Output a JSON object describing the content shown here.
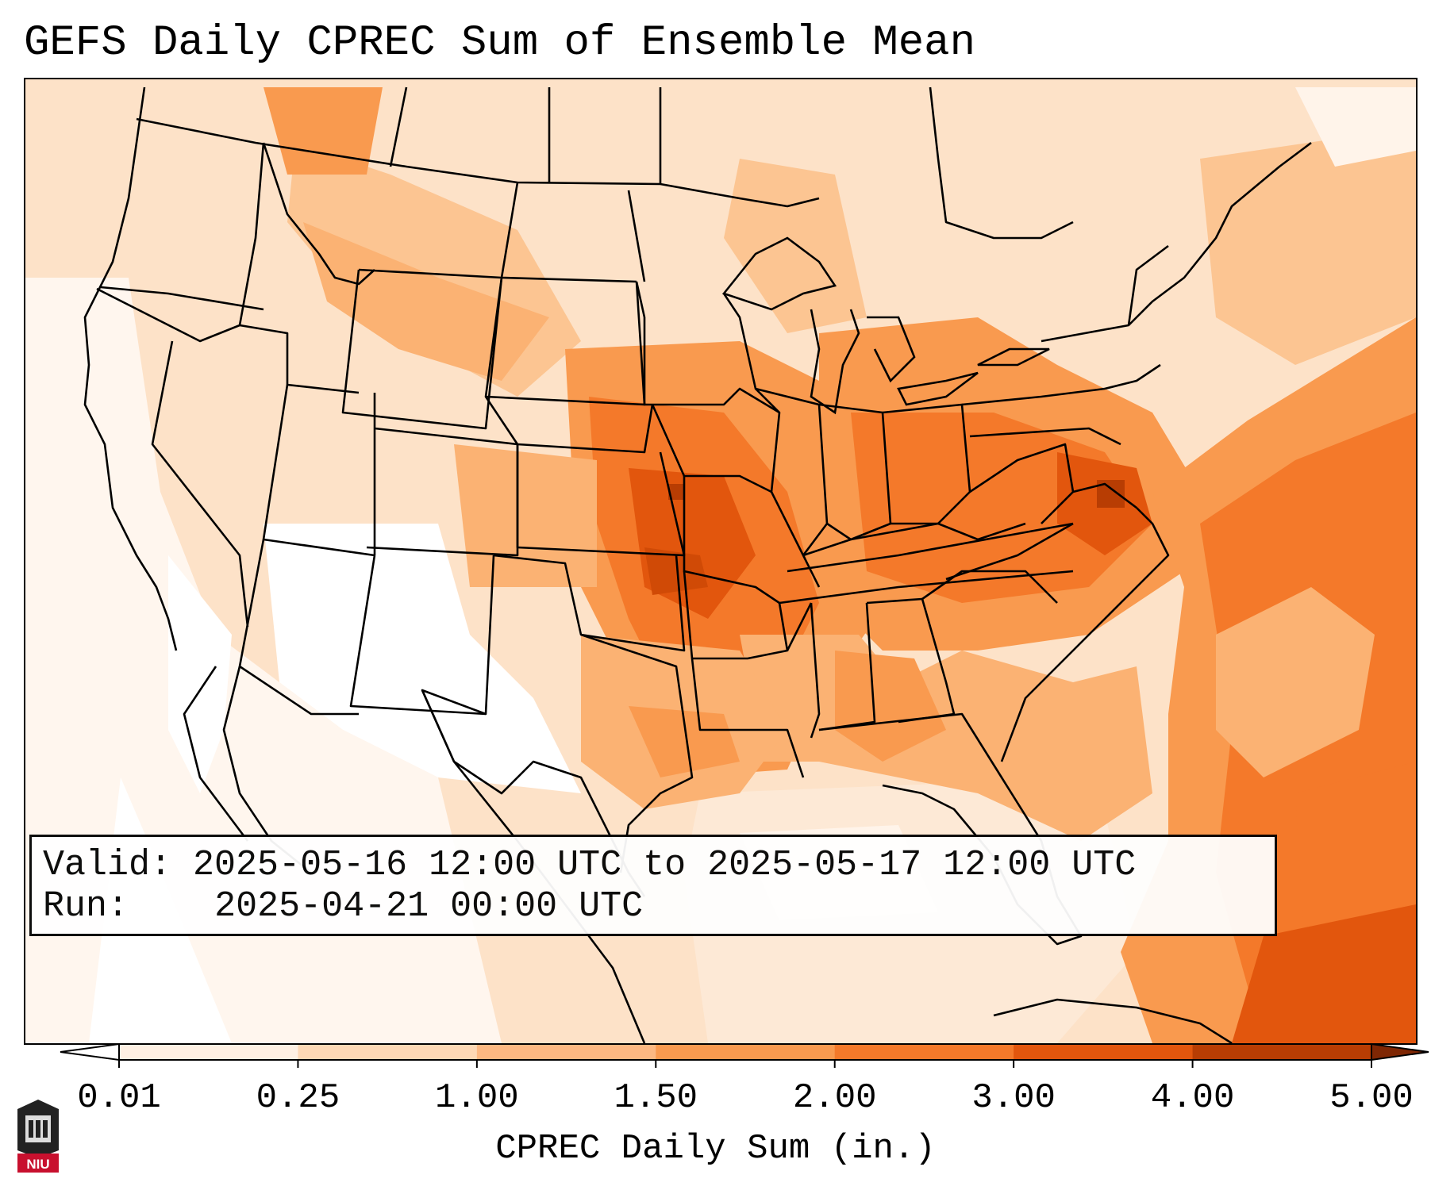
{
  "title": "GEFS Daily CPREC Sum of Ensemble Mean",
  "info": {
    "valid_label": "Valid:",
    "valid_value": "2025-05-16 12:00 UTC to 2025-05-17 12:00 UTC",
    "run_label": "Run:",
    "run_value": "2025-04-21 00:00 UTC"
  },
  "colorbar": {
    "label": "CPREC Daily Sum (in.)",
    "ticks": [
      "0.01",
      "0.25",
      "1.00",
      "1.50",
      "2.00",
      "3.00",
      "4.00",
      "5.00"
    ],
    "colors": [
      "#fef0e3",
      "#fdd8b5",
      "#fcb882",
      "#f99a4f",
      "#f4792a",
      "#e2560d",
      "#b83d03"
    ]
  },
  "logo": {
    "text": "NIU",
    "colors": {
      "red": "#c8102e",
      "dark": "#222222"
    }
  },
  "map": {
    "features": [
      "state-borders",
      "coastlines",
      "great-lakes",
      "precip-field"
    ]
  }
}
